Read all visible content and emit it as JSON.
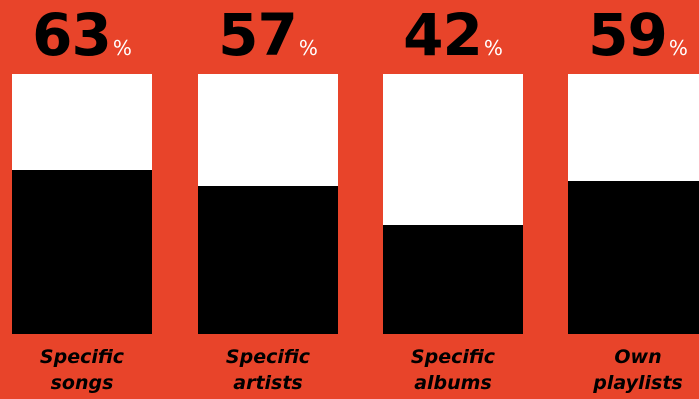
{
  "chart_data": {
    "type": "bar",
    "unit": "%",
    "categories": [
      [
        "Specific",
        "songs"
      ],
      [
        "Specific",
        "artists"
      ],
      [
        "Specific",
        "albums"
      ],
      [
        "Own",
        "playlists"
      ]
    ],
    "values": [
      63,
      57,
      42,
      59
    ],
    "value_labels": [
      "63",
      "57",
      "42",
      "59"
    ],
    "ylim": [
      0,
      100
    ],
    "grid": false,
    "legend": "none",
    "colors": {
      "background": "#E8442A",
      "bar_track": "#FFFFFF",
      "bar_fill": "#000000",
      "value_text": "#000000",
      "unit_text": "#FFFFFF"
    }
  }
}
